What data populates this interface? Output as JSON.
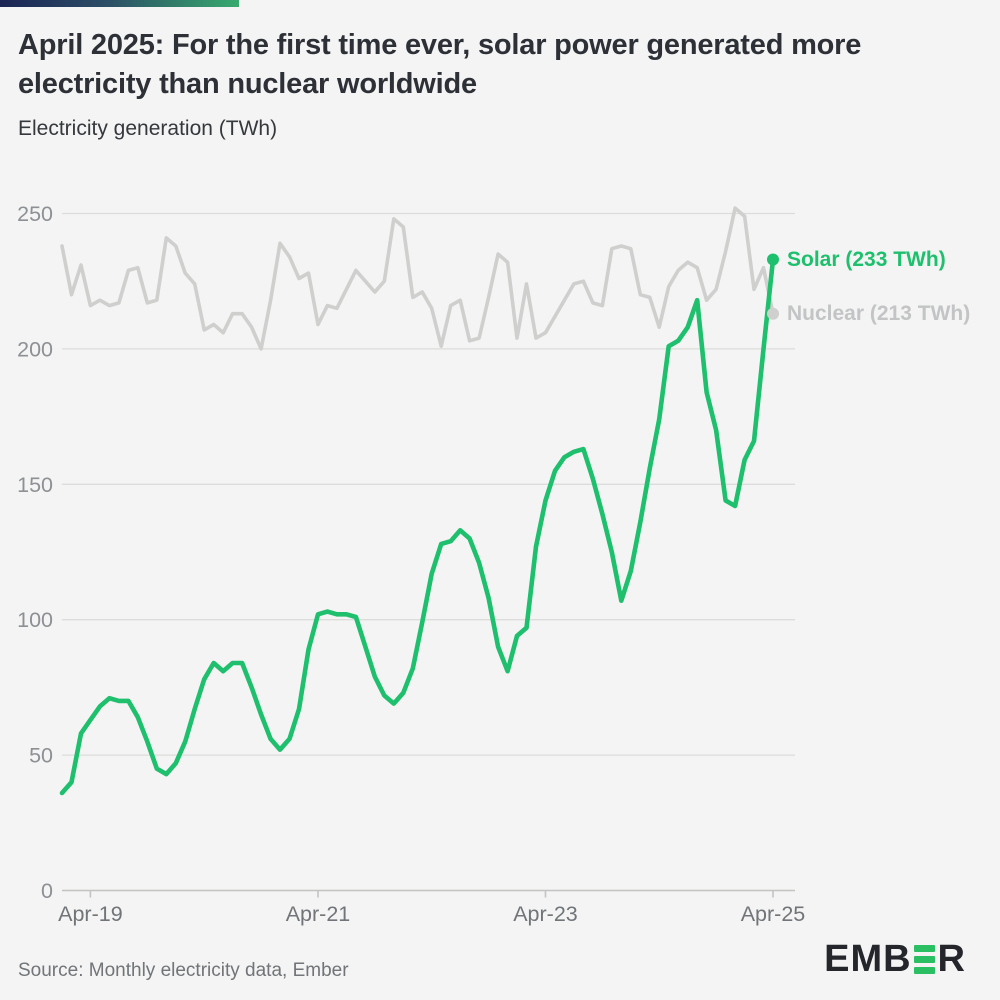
{
  "header": {
    "title": "April 2025: For the first time ever, solar power generated more electricity than nuclear worldwide",
    "subtitle": "Electricity generation (TWh)"
  },
  "chart_data": {
    "type": "line",
    "title": "April 2025: For the first time ever, solar power generated more electricity than nuclear worldwide",
    "ylabel": "Electricity generation (TWh)",
    "xlabel": "",
    "x_frequency": "monthly",
    "x_start": "Jan-2019",
    "x_end": "Apr-2025",
    "ylim": [
      0,
      250
    ],
    "yticks": [
      0,
      50,
      100,
      150,
      200,
      250
    ],
    "x_ticks": [
      {
        "month_index": 3,
        "label": "Apr-19"
      },
      {
        "month_index": 27,
        "label": "Apr-21"
      },
      {
        "month_index": 51,
        "label": "Apr-23"
      },
      {
        "month_index": 75,
        "label": "Apr-25"
      }
    ],
    "grid": "horizontal",
    "legend_position": "end-of-line",
    "series": [
      {
        "name": "Solar",
        "color": "#1ebf6d",
        "end_label": "Solar (233 TWh)",
        "end_value": 233,
        "values": [
          36,
          40,
          58,
          63,
          68,
          71,
          70,
          70,
          64,
          55,
          45,
          43,
          47,
          55,
          67,
          78,
          84,
          81,
          84,
          84,
          75,
          65,
          56,
          52,
          56,
          67,
          89,
          102,
          103,
          102,
          102,
          101,
          90,
          79,
          72,
          69,
          73,
          82,
          99,
          117,
          128,
          129,
          133,
          130,
          121,
          108,
          90,
          81,
          94,
          97,
          127,
          144,
          155,
          160,
          162,
          163,
          152,
          139,
          125,
          107,
          118,
          136,
          156,
          174,
          201,
          203,
          208,
          218,
          184,
          170,
          144,
          142,
          159,
          166,
          200,
          233
        ]
      },
      {
        "name": "Nuclear",
        "color": "#cfcfce",
        "label_color": "#c2c4c5",
        "end_label": "Nuclear (213 TWh)",
        "end_value": 213,
        "values": [
          238,
          220,
          231,
          216,
          218,
          216,
          217,
          229,
          230,
          217,
          218,
          241,
          238,
          228,
          224,
          207,
          209,
          206,
          213,
          213,
          208,
          200,
          218,
          239,
          234,
          226,
          228,
          209,
          216,
          215,
          222,
          229,
          225,
          221,
          225,
          248,
          245,
          219,
          221,
          215,
          201,
          216,
          218,
          203,
          204,
          219,
          235,
          232,
          204,
          224,
          204,
          206,
          212,
          218,
          224,
          225,
          217,
          216,
          237,
          238,
          237,
          220,
          219,
          208,
          223,
          229,
          232,
          230,
          218,
          222,
          236,
          252,
          249,
          222,
          230,
          213
        ]
      }
    ]
  },
  "footer": {
    "source": "Source: Monthly electricity data, Ember",
    "logo_name": "EMBER",
    "logo_text_left": "EMB",
    "logo_text_right": "R"
  },
  "colors": {
    "background": "#f3f4f3",
    "gridline": "#dcdcdb",
    "axis": "#c3c3c2",
    "y_tick_text": "#8d9094",
    "x_tick_text": "#717478",
    "solar_accent": "#1ebf6d",
    "nuclear_gray": "#cfcfce",
    "logo_green": "#2abf62",
    "topbar_left": "#1b2454",
    "topbar_right": "#37aa6e"
  }
}
